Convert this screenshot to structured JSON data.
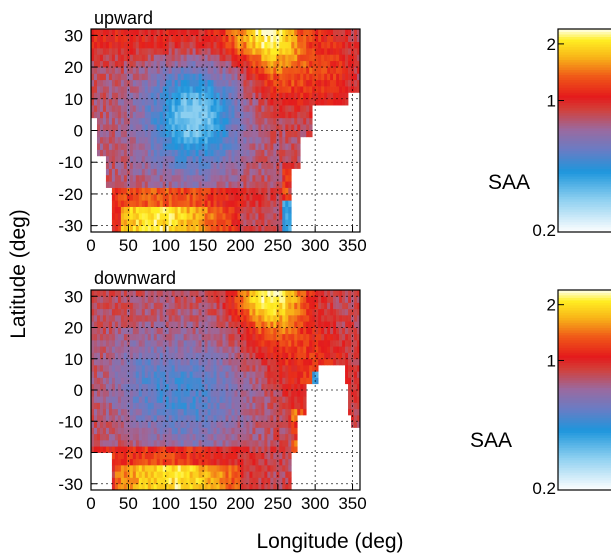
{
  "chart_data": [
    {
      "type": "heatmap",
      "title": "upward",
      "xlabel": "Longitude (deg)",
      "ylabel": "Latitude (deg)",
      "xlim": [
        0,
        360
      ],
      "ylim": [
        -32,
        32
      ],
      "x_ticks": [
        0,
        50,
        100,
        150,
        200,
        250,
        300,
        350
      ],
      "y_ticks": [
        30,
        20,
        10,
        0,
        -10,
        -20,
        -30
      ],
      "grid": true,
      "annotation": "SAA",
      "colorbar": {
        "scale": "log",
        "min": 0.2,
        "max": 2.4,
        "ticks": [
          2,
          1,
          0.2
        ],
        "tick_labels": [
          "2",
          "1",
          "0.2"
        ]
      },
      "cell_size_deg": {
        "lon": 4,
        "lat": 2
      },
      "features": {
        "baseline": 0.8,
        "low_region": {
          "lon": 140,
          "lat": 5,
          "value": 0.45
        },
        "high_bands": [
          {
            "lon_range": [
              40,
              190
            ],
            "lat": -28,
            "value": 2.0
          },
          {
            "lon_range": [
              205,
              265
            ],
            "lat": 30,
            "value": 2.1
          }
        ],
        "saa_void": "lon 265-360 for lat below about 8, tapering west to lon 30 near lat 0 to -30"
      }
    },
    {
      "type": "heatmap",
      "title": "downward",
      "xlabel": "Longitude (deg)",
      "ylabel": "Latitude (deg)",
      "xlim": [
        0,
        360
      ],
      "ylim": [
        -32,
        32
      ],
      "x_ticks": [
        0,
        50,
        100,
        150,
        200,
        250,
        300,
        350
      ],
      "y_ticks": [
        30,
        20,
        10,
        0,
        -10,
        -20,
        -30
      ],
      "grid": true,
      "annotation": "SAA",
      "colorbar": {
        "scale": "log",
        "min": 0.2,
        "max": 2.4,
        "ticks": [
          2,
          1,
          0.2
        ],
        "tick_labels": [
          "2",
          "1",
          "0.2"
        ]
      },
      "cell_size_deg": {
        "lon": 4,
        "lat": 2
      },
      "features": {
        "baseline": 0.8,
        "low_region": {
          "lon": 130,
          "lat": -2,
          "value": 0.55
        },
        "high_bands": [
          {
            "lon_range": [
              40,
              190
            ],
            "lat": -28,
            "value": 2.0
          },
          {
            "lon_range": [
              215,
              270
            ],
            "lat": 30,
            "value": 2.1
          }
        ],
        "saa_void": "lon 270-350 below about lat 0, small void lon 0-30 near lat -25"
      }
    }
  ],
  "colorscale": [
    {
      "v": 0.2,
      "color": "#ffffff"
    },
    {
      "v": 0.3,
      "color": "#8ccff0"
    },
    {
      "v": 0.42,
      "color": "#1e96dc"
    },
    {
      "v": 0.55,
      "color": "#6a7cc4"
    },
    {
      "v": 0.7,
      "color": "#9a6aa0"
    },
    {
      "v": 0.9,
      "color": "#d2403a"
    },
    {
      "v": 1.05,
      "color": "#e41a1c"
    },
    {
      "v": 1.35,
      "color": "#f05a18"
    },
    {
      "v": 1.7,
      "color": "#f8b418"
    },
    {
      "v": 2.1,
      "color": "#ffee22"
    },
    {
      "v": 2.4,
      "color": "#ffffee"
    }
  ]
}
